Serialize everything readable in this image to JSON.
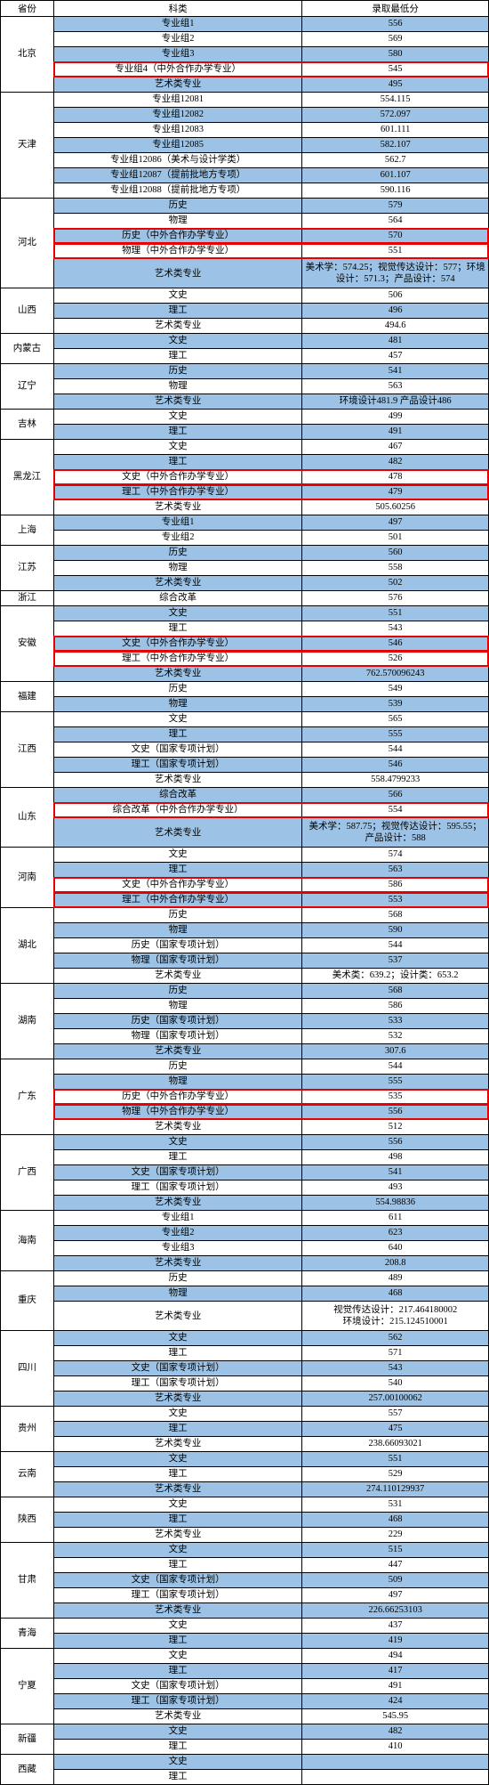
{
  "colors": {
    "header_bg": "#ffffff",
    "row_alt": "#9cc3e6",
    "row_base": "#ffffff",
    "highlight": "#e60000",
    "border": "#000000"
  },
  "headers": {
    "province": "省份",
    "category": "科类",
    "score": "录取最低分"
  },
  "rows": [
    {
      "prov": "北京",
      "span": 5,
      "cat": "专业组1",
      "score": "556",
      "bg": "blue"
    },
    {
      "cat": "专业组2",
      "score": "569",
      "bg": "white"
    },
    {
      "cat": "专业组3",
      "score": "580",
      "bg": "blue"
    },
    {
      "cat": "专业组4（中外合作办学专业）",
      "score": "545",
      "bg": "white",
      "hl": true
    },
    {
      "cat": "艺术类专业",
      "score": "495",
      "bg": "blue"
    },
    {
      "prov": "天津",
      "span": 7,
      "cat": "专业组12081",
      "score": "554.115",
      "bg": "white"
    },
    {
      "cat": "专业组12082",
      "score": "572.097",
      "bg": "blue"
    },
    {
      "cat": "专业组12083",
      "score": "601.111",
      "bg": "white"
    },
    {
      "cat": "专业组12085",
      "score": "582.107",
      "bg": "blue"
    },
    {
      "cat": "专业组12086（美术与设计学类）",
      "score": "562.7",
      "bg": "white"
    },
    {
      "cat": "专业组12087（提前批地方专项）",
      "score": "601.107",
      "bg": "blue"
    },
    {
      "cat": "专业组12088（提前批地方专项）",
      "score": "590.116",
      "bg": "white"
    },
    {
      "prov": "河北",
      "span": 5,
      "cat": "历史",
      "score": "579",
      "bg": "blue"
    },
    {
      "cat": "物理",
      "score": "564",
      "bg": "white"
    },
    {
      "cat": "历史（中外合作办学专业）",
      "score": "570",
      "bg": "blue",
      "hl": true
    },
    {
      "cat": "物理（中外合作办学专业）",
      "score": "551",
      "bg": "white",
      "hl": true
    },
    {
      "cat": "艺术类专业",
      "score": "美术学：574.25；视觉传达设计：577；环境设计：571.3；产品设计：574",
      "bg": "blue",
      "multi": true
    },
    {
      "prov": "山西",
      "span": 3,
      "cat": "文史",
      "score": "506",
      "bg": "white"
    },
    {
      "cat": "理工",
      "score": "496",
      "bg": "blue"
    },
    {
      "cat": "艺术类专业",
      "score": "494.6",
      "bg": "white"
    },
    {
      "prov": "内蒙古",
      "span": 2,
      "cat": "文史",
      "score": "481",
      "bg": "blue"
    },
    {
      "cat": "理工",
      "score": "457",
      "bg": "white"
    },
    {
      "prov": "辽宁",
      "span": 3,
      "cat": "历史",
      "score": "541",
      "bg": "blue"
    },
    {
      "cat": "物理",
      "score": "563",
      "bg": "white"
    },
    {
      "cat": "艺术类专业",
      "score": "环境设计481.9 产品设计486",
      "bg": "blue"
    },
    {
      "prov": "吉林",
      "span": 2,
      "cat": "文史",
      "score": "499",
      "bg": "white"
    },
    {
      "cat": "理工",
      "score": "491",
      "bg": "blue"
    },
    {
      "prov": "黑龙江",
      "span": 5,
      "cat": "文史",
      "score": "467",
      "bg": "white"
    },
    {
      "cat": "理工",
      "score": "482",
      "bg": "blue"
    },
    {
      "cat": "文史（中外合作办学专业）",
      "score": "478",
      "bg": "white",
      "hl": true
    },
    {
      "cat": "理工（中外合作办学专业）",
      "score": "479",
      "bg": "blue",
      "hl": true
    },
    {
      "cat": "艺术类专业",
      "score": "505.60256",
      "bg": "white"
    },
    {
      "prov": "上海",
      "span": 2,
      "cat": "专业组1",
      "score": "497",
      "bg": "blue"
    },
    {
      "cat": "专业组2",
      "score": "501",
      "bg": "white"
    },
    {
      "prov": "江苏",
      "span": 3,
      "cat": "历史",
      "score": "560",
      "bg": "blue"
    },
    {
      "cat": "物理",
      "score": "558",
      "bg": "white"
    },
    {
      "cat": "艺术类专业",
      "score": "502",
      "bg": "blue"
    },
    {
      "prov": "浙江",
      "span": 1,
      "cat": "综合改革",
      "score": "576",
      "bg": "white"
    },
    {
      "prov": "安徽",
      "span": 5,
      "cat": "文史",
      "score": "551",
      "bg": "blue"
    },
    {
      "cat": "理工",
      "score": "543",
      "bg": "white"
    },
    {
      "cat": "文史（中外合作办学专业）",
      "score": "546",
      "bg": "blue",
      "hl": true
    },
    {
      "cat": "理工（中外合作办学专业）",
      "score": "526",
      "bg": "white",
      "hl": true
    },
    {
      "cat": "艺术类专业",
      "score": "762.57009624​3",
      "bg": "blue"
    },
    {
      "prov": "福建",
      "span": 2,
      "cat": "历史",
      "score": "549",
      "bg": "white"
    },
    {
      "cat": "物理",
      "score": "539",
      "bg": "blue"
    },
    {
      "prov": "江西",
      "span": 5,
      "cat": "文史",
      "score": "565",
      "bg": "white"
    },
    {
      "cat": "理工",
      "score": "555",
      "bg": "blue"
    },
    {
      "cat": "文史（国家专项计划）",
      "score": "544",
      "bg": "white"
    },
    {
      "cat": "理工（国家专项计划）",
      "score": "546",
      "bg": "blue"
    },
    {
      "cat": "艺术类专业",
      "score": "558.4799233",
      "bg": "white"
    },
    {
      "prov": "山东",
      "span": 3,
      "cat": "综合改革",
      "score": "566",
      "bg": "blue"
    },
    {
      "cat": "综合改革（中外合作办学专业）",
      "score": "554",
      "bg": "white",
      "hl": true
    },
    {
      "cat": "艺术类专业",
      "score": "美术学：587.75；视觉传达设计：595.55；产品设计：588",
      "bg": "blue",
      "multi": true
    },
    {
      "prov": "河南",
      "span": 4,
      "cat": "文史",
      "score": "574",
      "bg": "white"
    },
    {
      "cat": "理工",
      "score": "563",
      "bg": "blue"
    },
    {
      "cat": "文史（中外合作办学专业）",
      "score": "586",
      "bg": "white",
      "hl": true
    },
    {
      "cat": "理工（中外合作办学专业）",
      "score": "553",
      "bg": "blue",
      "hl": true
    },
    {
      "prov": "湖北",
      "span": 5,
      "cat": "历史",
      "score": "568",
      "bg": "white"
    },
    {
      "cat": "物理",
      "score": "590",
      "bg": "blue"
    },
    {
      "cat": "历史（国家专项计划）",
      "score": "544",
      "bg": "white"
    },
    {
      "cat": "物理（国家专项计划）",
      "score": "537",
      "bg": "blue"
    },
    {
      "cat": "艺术类专业",
      "score": "美术类：639.2；设计类：653.2",
      "bg": "white"
    },
    {
      "prov": "湖南",
      "span": 5,
      "cat": "历史",
      "score": "568",
      "bg": "blue"
    },
    {
      "cat": "物理",
      "score": "586",
      "bg": "white"
    },
    {
      "cat": "历史（国家专项计划）",
      "score": "533",
      "bg": "blue"
    },
    {
      "cat": "物理（国家专项计划）",
      "score": "532",
      "bg": "white"
    },
    {
      "cat": "艺术类专业",
      "score": "307.6",
      "bg": "blue"
    },
    {
      "prov": "广东",
      "span": 5,
      "cat": "历史",
      "score": "544",
      "bg": "white"
    },
    {
      "cat": "物理",
      "score": "555",
      "bg": "blue"
    },
    {
      "cat": "历史（中外合作办学专业）",
      "score": "535",
      "bg": "white",
      "hl": true
    },
    {
      "cat": "物理（中外合作办学专业）",
      "score": "556",
      "bg": "blue",
      "hl": true
    },
    {
      "cat": "艺术类专业",
      "score": "512",
      "bg": "white"
    },
    {
      "prov": "广西",
      "span": 5,
      "cat": "文史",
      "score": "556",
      "bg": "blue"
    },
    {
      "cat": "理工",
      "score": "498",
      "bg": "white"
    },
    {
      "cat": "文史（国家专项计划）",
      "score": "541",
      "bg": "blue"
    },
    {
      "cat": "理工（国家专项计划）",
      "score": "493",
      "bg": "white"
    },
    {
      "cat": "艺术类专业",
      "score": "554.98836",
      "bg": "blue"
    },
    {
      "prov": "海南",
      "span": 4,
      "cat": "专业组1",
      "score": "611",
      "bg": "white"
    },
    {
      "cat": "专业组2",
      "score": "623",
      "bg": "blue"
    },
    {
      "cat": "专业组3",
      "score": "640",
      "bg": "white"
    },
    {
      "cat": "艺术类专业",
      "score": "208.8",
      "bg": "blue"
    },
    {
      "prov": "重庆",
      "span": 3,
      "cat": "历史",
      "score": "489",
      "bg": "white"
    },
    {
      "cat": "物理",
      "score": "468",
      "bg": "blue"
    },
    {
      "cat": "艺术类专业",
      "score": "视觉传达设计：217.464180002\n环境设计：215.124510001",
      "bg": "white",
      "multi": true
    },
    {
      "prov": "四川",
      "span": 5,
      "cat": "文史",
      "score": "562",
      "bg": "blue"
    },
    {
      "cat": "理工",
      "score": "571",
      "bg": "white"
    },
    {
      "cat": "文史（国家专项计划）",
      "score": "543",
      "bg": "blue"
    },
    {
      "cat": "理工（国家专项计划）",
      "score": "540",
      "bg": "white"
    },
    {
      "cat": "艺术类专业",
      "score": "257.00100062",
      "bg": "blue"
    },
    {
      "prov": "贵州",
      "span": 3,
      "cat": "文史",
      "score": "557",
      "bg": "white"
    },
    {
      "cat": "理工",
      "score": "475",
      "bg": "blue"
    },
    {
      "cat": "艺术类专业",
      "score": "238.66093021",
      "bg": "white"
    },
    {
      "prov": "云南",
      "span": 3,
      "cat": "文史",
      "score": "551",
      "bg": "blue"
    },
    {
      "cat": "理工",
      "score": "529",
      "bg": "white"
    },
    {
      "cat": "艺术类专业",
      "score": "274.110129937",
      "bg": "blue"
    },
    {
      "prov": "陕西",
      "span": 3,
      "cat": "文史",
      "score": "531",
      "bg": "white"
    },
    {
      "cat": "理工",
      "score": "468",
      "bg": "blue"
    },
    {
      "cat": "艺术类专业",
      "score": "229",
      "bg": "white"
    },
    {
      "prov": "甘肃",
      "span": 5,
      "cat": "文史",
      "score": "515",
      "bg": "blue"
    },
    {
      "cat": "理工",
      "score": "447",
      "bg": "white"
    },
    {
      "cat": "文史（国家专项计划）",
      "score": "509",
      "bg": "blue"
    },
    {
      "cat": "理工（国家专项计划）",
      "score": "497",
      "bg": "white"
    },
    {
      "cat": "艺术类专业",
      "score": "226.66253103",
      "bg": "blue"
    },
    {
      "prov": "青海",
      "span": 2,
      "cat": "文史",
      "score": "437",
      "bg": "white"
    },
    {
      "cat": "理工",
      "score": "419",
      "bg": "blue"
    },
    {
      "prov": "宁夏",
      "span": 5,
      "cat": "文史",
      "score": "494",
      "bg": "white"
    },
    {
      "cat": "理工",
      "score": "417",
      "bg": "blue"
    },
    {
      "cat": "文史（国家专项计划）",
      "score": "491",
      "bg": "white"
    },
    {
      "cat": "理工（国家专项计划）",
      "score": "424",
      "bg": "blue"
    },
    {
      "cat": "艺术类专业",
      "score": "545.95",
      "bg": "white"
    },
    {
      "prov": "新疆",
      "span": 2,
      "cat": "文史",
      "score": "482",
      "bg": "blue"
    },
    {
      "cat": "理工",
      "score": "410",
      "bg": "white"
    },
    {
      "prov": "西藏",
      "span": 2,
      "cat": "文史",
      "score": "",
      "bg": "blue"
    },
    {
      "cat": "理工",
      "score": "",
      "bg": "white"
    }
  ]
}
